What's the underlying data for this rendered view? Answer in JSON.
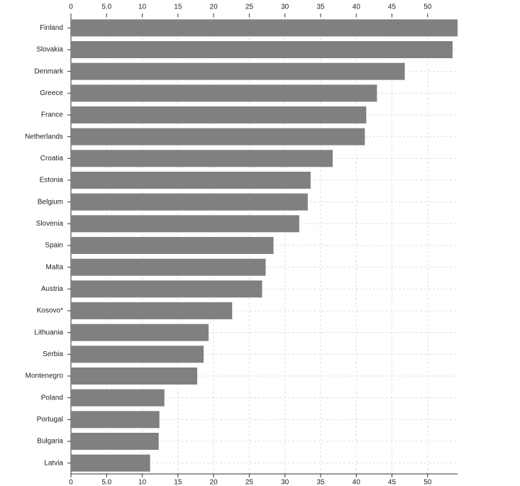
{
  "chart_data": {
    "type": "hbar",
    "categories": [
      "Finland",
      "Slovakia",
      "Denmark",
      "Greece",
      "France",
      "Netherlands",
      "Croatia",
      "Estonia",
      "Belgium",
      "Slovenia",
      "Spain",
      "Malta",
      "Austria",
      "Kosovo*",
      "Lithuania",
      "Serbia",
      "Montenegro",
      "Poland",
      "Portugal",
      "Bulgaria",
      "Latvia"
    ],
    "values": [
      54.2,
      53.5,
      46.8,
      42.9,
      41.4,
      41.2,
      36.7,
      33.6,
      33.2,
      32.0,
      28.4,
      27.3,
      26.8,
      22.6,
      19.3,
      18.6,
      17.7,
      13.1,
      12.4,
      12.3,
      11.1
    ],
    "color": "#808080",
    "xlim": [
      0,
      54.2
    ],
    "xticks": [
      0,
      {
        "value": 5,
        "label": "5.0"
      },
      10,
      15,
      20,
      25,
      30,
      35,
      40,
      45,
      50
    ],
    "grid": true
  }
}
